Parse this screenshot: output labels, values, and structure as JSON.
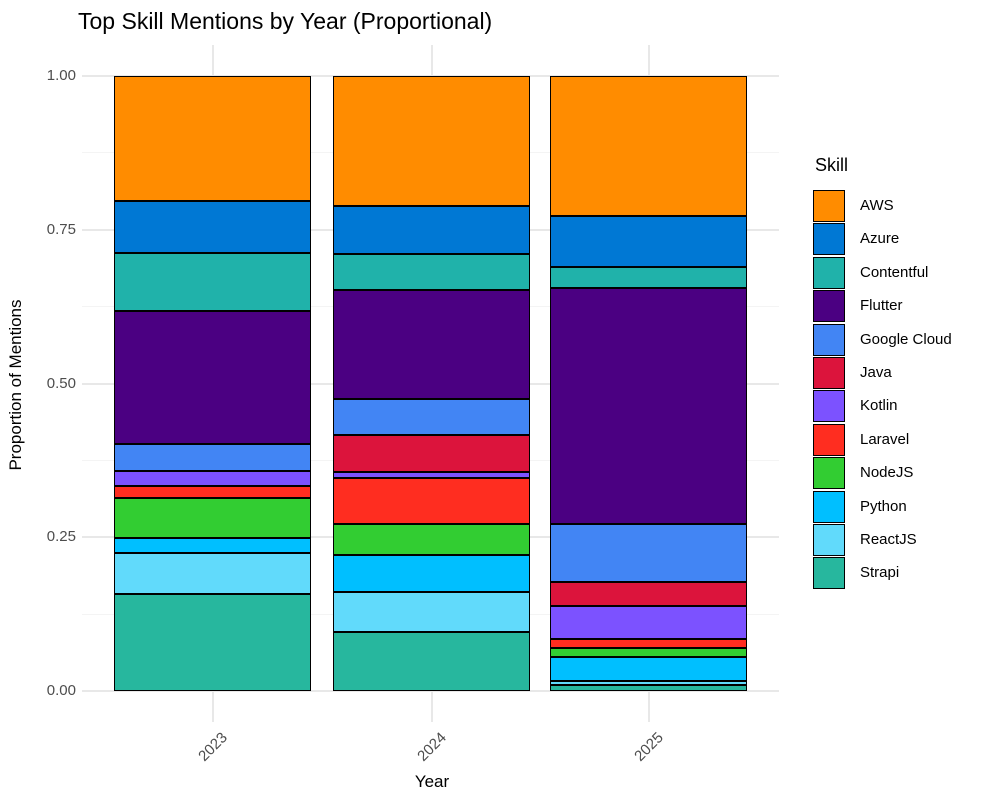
{
  "title": "Top Skill Mentions by Year (Proportional)",
  "x_axis": {
    "label": "Year",
    "tick_labels": [
      "2023",
      "2024",
      "2025"
    ]
  },
  "y_axis": {
    "label": "Proportion of Mentions",
    "tick_labels": [
      "0.00",
      "0.25",
      "0.50",
      "0.75",
      "1.00"
    ]
  },
  "legend": {
    "title": "Skill",
    "position": "right",
    "items": [
      "AWS",
      "Azure",
      "Contentful",
      "Flutter",
      "Google Cloud",
      "Java",
      "Kotlin",
      "Laravel",
      "NodeJS",
      "Python",
      "ReactJS",
      "Strapi"
    ]
  },
  "segment_border_color": "#000000",
  "gridline_major_color": "#e8e8e8",
  "gridline_minor_color": "#f4f4f4",
  "axis_text_color": "#4d4d4d",
  "chart_data": {
    "type": "bar",
    "stacked": true,
    "normalized": true,
    "orientation": "vertical",
    "title": "Top Skill Mentions by Year (Proportional)",
    "xlabel": "Year",
    "ylabel": "Proportion of Mentions",
    "categories": [
      "2023",
      "2024",
      "2025"
    ],
    "ylim": [
      0,
      1
    ],
    "y_major_ticks": [
      0,
      0.25,
      0.5,
      0.75,
      1.0
    ],
    "y_minor_ticks": [
      0.125,
      0.375,
      0.625,
      0.875
    ],
    "grid": true,
    "legend_position": "right",
    "stack_order": "first series on top",
    "series": [
      {
        "name": "AWS",
        "color": "#FF8C00",
        "values": [
          0.203,
          0.211,
          0.228
        ]
      },
      {
        "name": "Azure",
        "color": "#0078D4",
        "values": [
          0.085,
          0.079,
          0.082
        ]
      },
      {
        "name": "Contentful",
        "color": "#20B2AA",
        "values": [
          0.094,
          0.058,
          0.034
        ]
      },
      {
        "name": "Flutter",
        "color": "#4B0082",
        "values": [
          0.217,
          0.177,
          0.385
        ]
      },
      {
        "name": "Google Cloud",
        "color": "#4285F4",
        "values": [
          0.043,
          0.059,
          0.093
        ]
      },
      {
        "name": "Java",
        "color": "#DC143C",
        "values": [
          0.0,
          0.06,
          0.04
        ]
      },
      {
        "name": "Kotlin",
        "color": "#7C52FF",
        "values": [
          0.025,
          0.009,
          0.054
        ]
      },
      {
        "name": "Laravel",
        "color": "#FF2D20",
        "values": [
          0.02,
          0.075,
          0.014
        ]
      },
      {
        "name": "NodeJS",
        "color": "#32CD32",
        "values": [
          0.065,
          0.051,
          0.014
        ]
      },
      {
        "name": "Python",
        "color": "#00BFFF",
        "values": [
          0.023,
          0.06,
          0.039
        ]
      },
      {
        "name": "ReactJS",
        "color": "#61DAFB",
        "values": [
          0.068,
          0.066,
          0.008
        ]
      },
      {
        "name": "Strapi",
        "color": "#27B79E",
        "values": [
          0.157,
          0.095,
          0.009
        ]
      }
    ]
  }
}
